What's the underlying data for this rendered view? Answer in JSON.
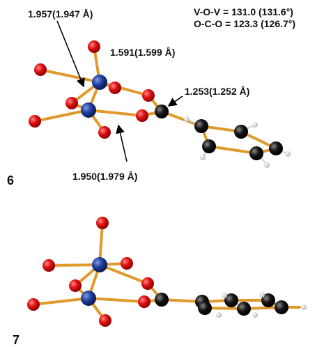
{
  "labels": {
    "bond_v_o_bridge": "1.957(1.947 Å)",
    "angle_vov": "V-O-V = 131.0 (131.6°)",
    "angle_oco": "O-C-O = 123.3 (126.7°)",
    "bond_v_o_terminal": "1.591(1.599 Å)",
    "bond_c_o": "1.253(1.252 Å)",
    "bond_v_o_carboxylate": "1.950(1.979 Å)"
  },
  "structures": [
    {
      "label": "6"
    },
    {
      "label": "7"
    }
  ]
}
